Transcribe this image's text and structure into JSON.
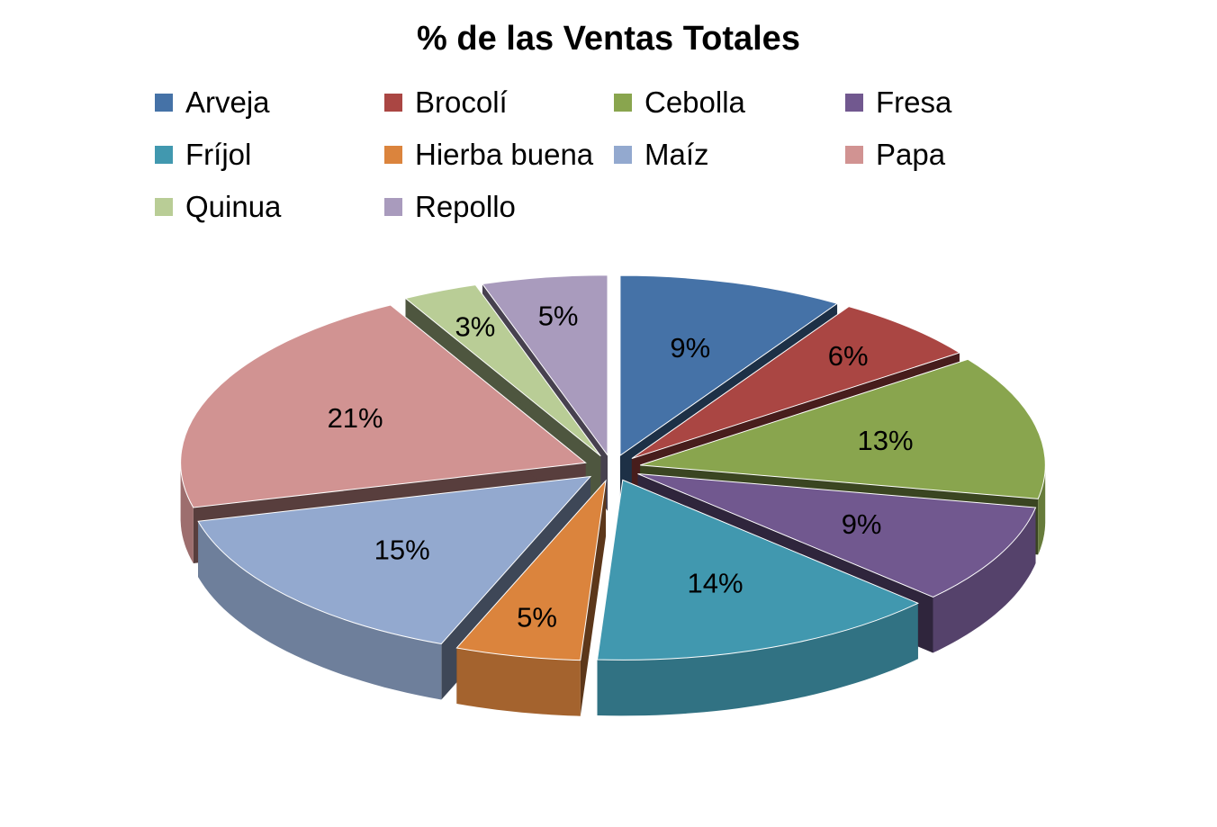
{
  "chart_data": {
    "type": "pie",
    "title": "% de las Ventas Totales",
    "legend_position": "top",
    "series": [
      {
        "name": "Arveja",
        "value": 9,
        "label": "9%",
        "color": "#4572A7"
      },
      {
        "name": "Brocolí",
        "value": 6,
        "label": "6%",
        "color": "#AA4643"
      },
      {
        "name": "Cebolla",
        "value": 13,
        "label": "13%",
        "color": "#89A54E"
      },
      {
        "name": "Fresa",
        "value": 9,
        "label": "9%",
        "color": "#71588F"
      },
      {
        "name": "Fríjol",
        "value": 14,
        "label": "14%",
        "color": "#4198AF"
      },
      {
        "name": "Hierba buena",
        "value": 5,
        "label": "5%",
        "color": "#DB843D"
      },
      {
        "name": "Maíz",
        "value": 15,
        "label": "15%",
        "color": "#93A9CF"
      },
      {
        "name": "Papa",
        "value": 21,
        "label": "21%",
        "color": "#D19392"
      },
      {
        "name": "Quinua",
        "value": 3,
        "label": "3%",
        "color": "#B9CD96"
      },
      {
        "name": "Repollo",
        "value": 5,
        "label": "5%",
        "color": "#A99BBD"
      }
    ]
  }
}
